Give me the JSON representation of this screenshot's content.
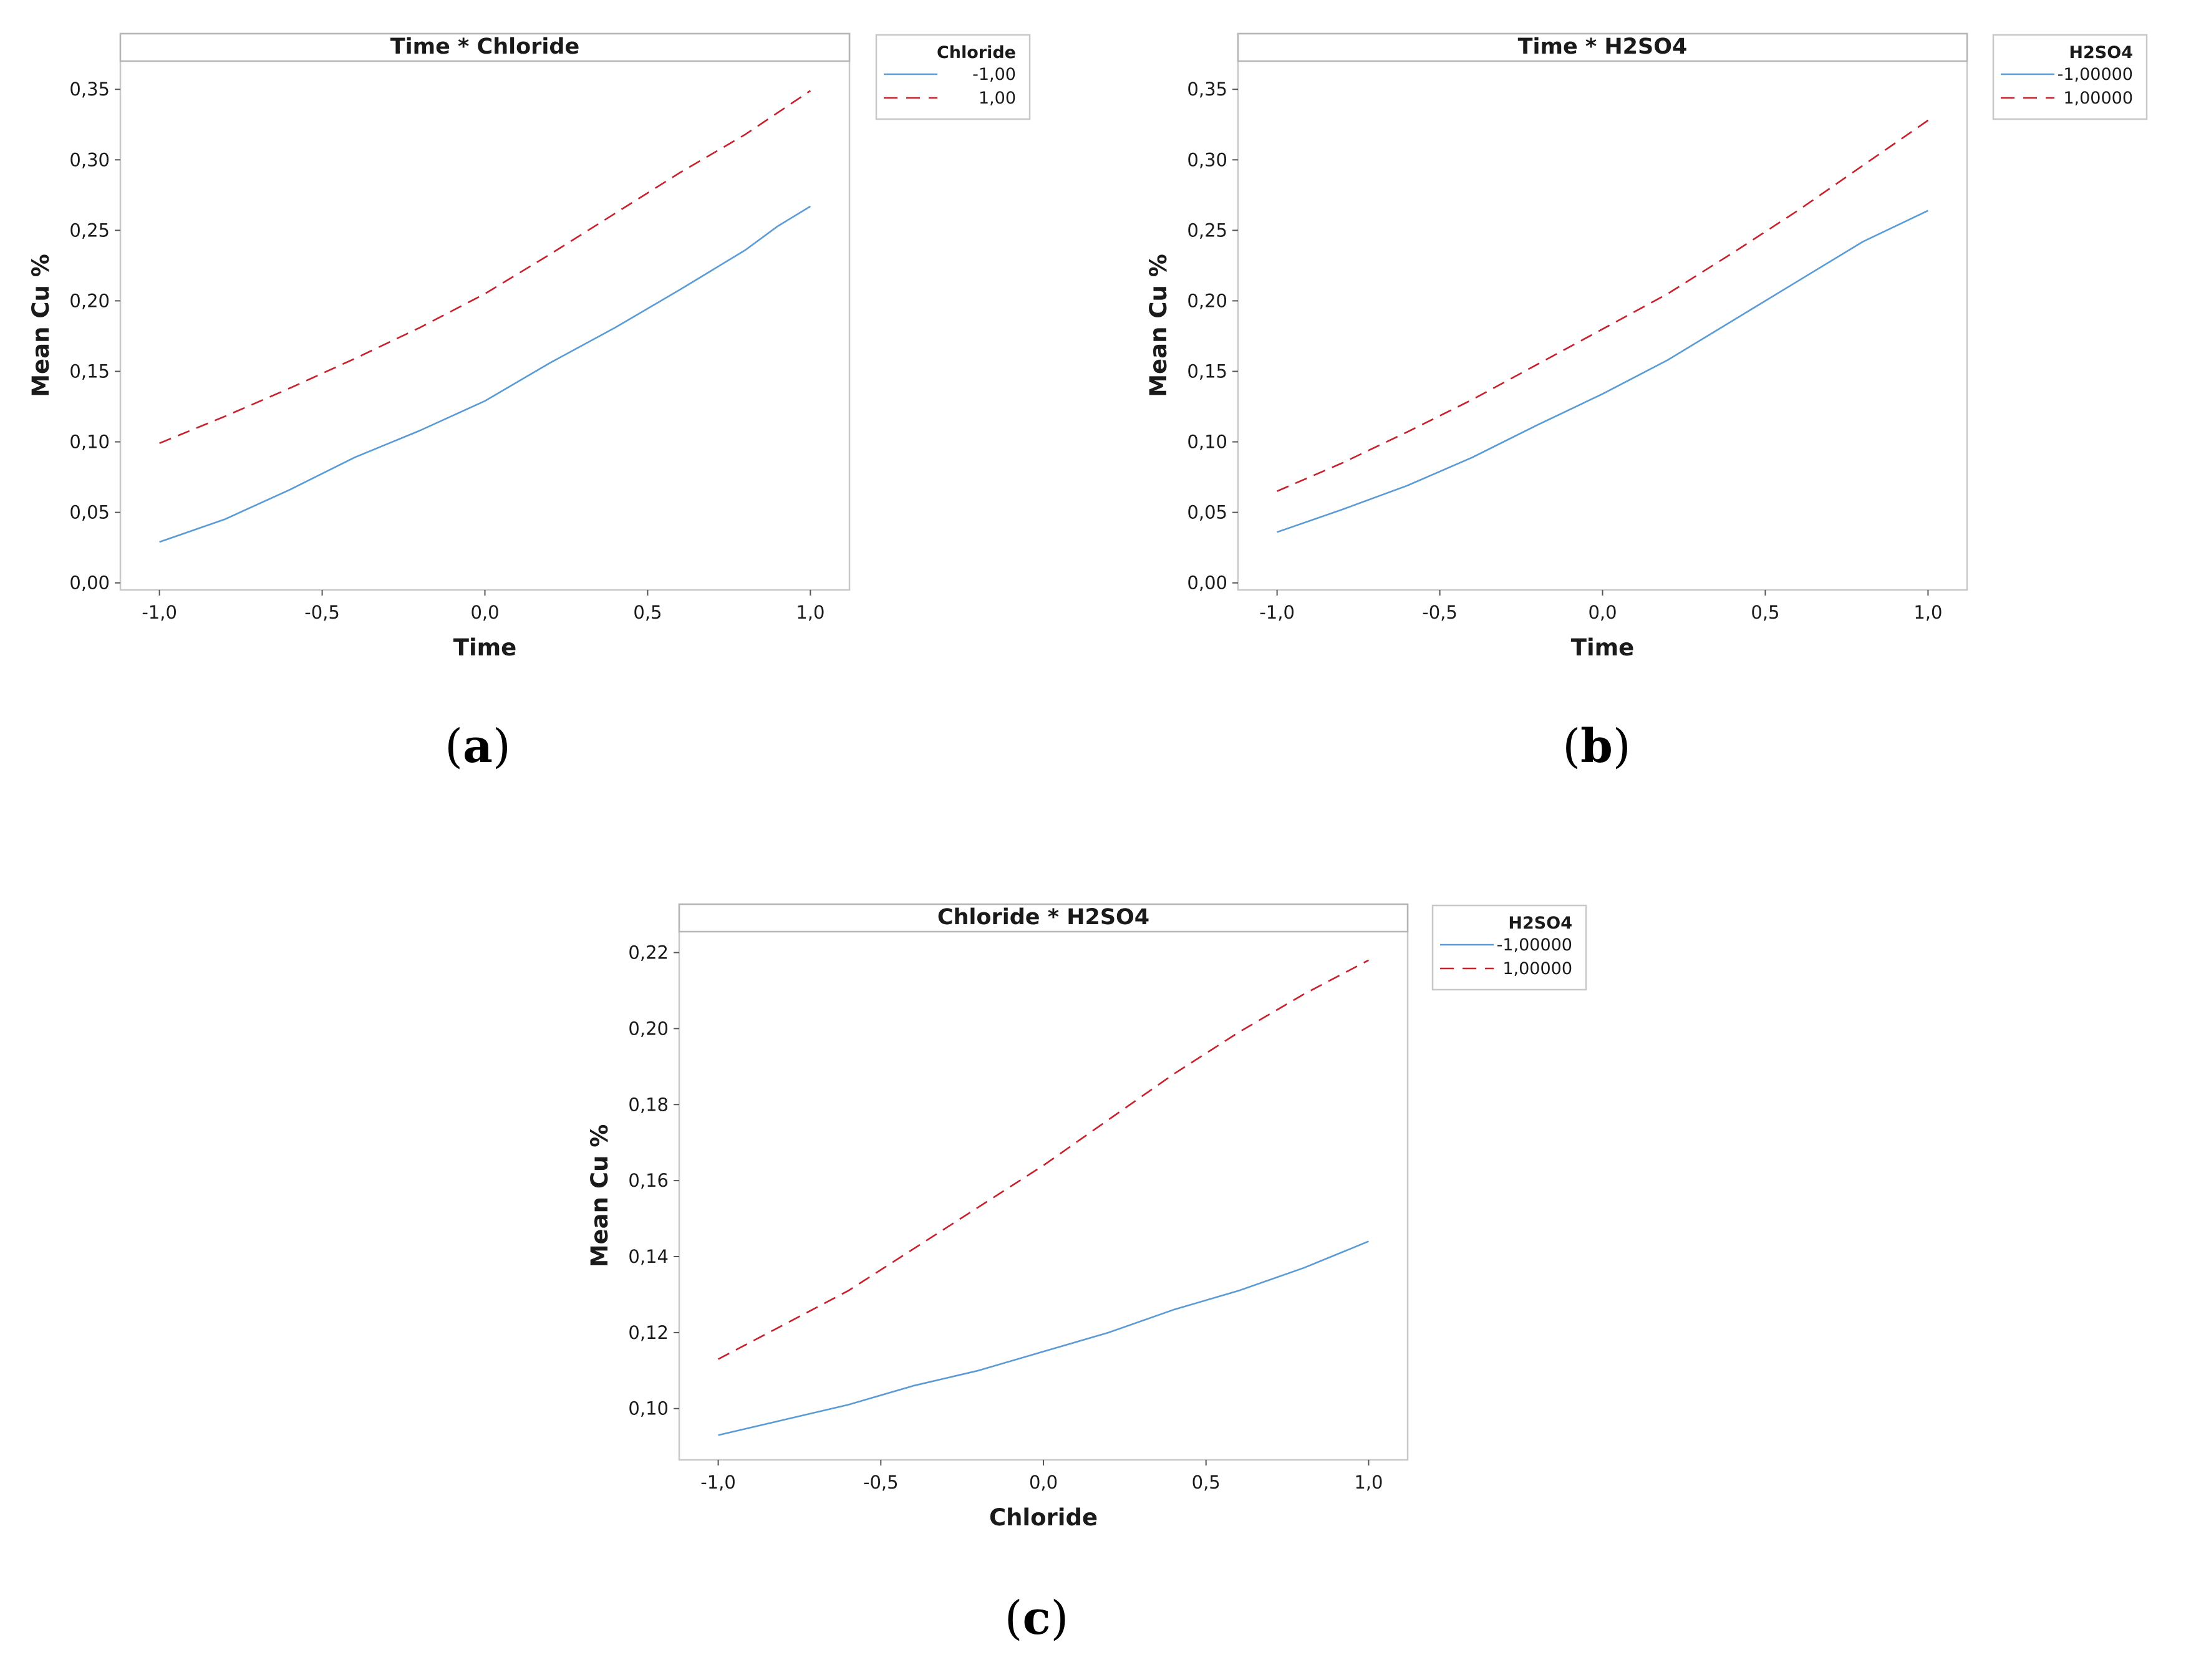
{
  "colors": {
    "series_low": "#5b9bd5",
    "series_high": "#c8202c"
  },
  "chart_data": [
    {
      "type": "line",
      "title": "Time * Chloride",
      "xlabel": "Time",
      "ylabel": "Mean Cu %",
      "xlim": [
        -1.12,
        1.12
      ],
      "ylim": [
        -0.005,
        0.37
      ],
      "xticks": [
        "-1,0",
        "-0,5",
        "0,0",
        "0,5",
        "1,0"
      ],
      "yticks": [
        "0,00",
        "0,05",
        "0,10",
        "0,15",
        "0,20",
        "0,25",
        "0,30",
        "0,35"
      ],
      "caption": {
        "open": "(",
        "letter": "a",
        "close": ")"
      },
      "legend": {
        "title": "Chloride",
        "position": "right",
        "entries": [
          "-1,00",
          "1,00"
        ]
      },
      "series": [
        {
          "name": "-1,00",
          "style": "solid",
          "x": [
            -1.0,
            -0.8,
            -0.6,
            -0.4,
            -0.2,
            0.0,
            0.2,
            0.4,
            0.6,
            0.8,
            0.9,
            1.0
          ],
          "y": [
            0.029,
            0.045,
            0.066,
            0.089,
            0.108,
            0.129,
            0.156,
            0.181,
            0.208,
            0.236,
            0.253,
            0.267
          ]
        },
        {
          "name": "1,00",
          "style": "dashed",
          "x": [
            -1.0,
            -0.8,
            -0.6,
            -0.4,
            -0.2,
            0.0,
            0.2,
            0.4,
            0.6,
            0.8,
            1.0
          ],
          "y": [
            0.099,
            0.118,
            0.138,
            0.159,
            0.181,
            0.205,
            0.233,
            0.262,
            0.291,
            0.318,
            0.349
          ]
        }
      ]
    },
    {
      "type": "line",
      "title": "Time * H2SO4",
      "xlabel": "Time",
      "ylabel": "Mean Cu %",
      "xlim": [
        -1.12,
        1.12
      ],
      "ylim": [
        -0.005,
        0.37
      ],
      "xticks": [
        "-1,0",
        "-0,5",
        "0,0",
        "0,5",
        "1,0"
      ],
      "yticks": [
        "0,00",
        "0,05",
        "0,10",
        "0,15",
        "0,20",
        "0,25",
        "0,30",
        "0,35"
      ],
      "caption": {
        "open": "(",
        "letter": "b",
        "close": ")"
      },
      "legend": {
        "title": "H2SO4",
        "position": "right",
        "entries": [
          "-1,00000",
          "1,00000"
        ]
      },
      "series": [
        {
          "name": "-1,00000",
          "style": "solid",
          "x": [
            -1.0,
            -0.8,
            -0.6,
            -0.4,
            -0.2,
            0.0,
            0.2,
            0.4,
            0.6,
            0.8,
            1.0
          ],
          "y": [
            0.036,
            0.052,
            0.069,
            0.089,
            0.112,
            0.134,
            0.158,
            0.186,
            0.214,
            0.242,
            0.264
          ]
        },
        {
          "name": "1,00000",
          "style": "dashed",
          "x": [
            -1.0,
            -0.8,
            -0.6,
            -0.4,
            -0.2,
            0.0,
            0.2,
            0.4,
            0.6,
            0.8,
            1.0
          ],
          "y": [
            0.065,
            0.085,
            0.107,
            0.13,
            0.155,
            0.18,
            0.205,
            0.234,
            0.264,
            0.296,
            0.328
          ]
        }
      ]
    },
    {
      "type": "line",
      "title": "Chloride * H2SO4",
      "xlabel": "Chloride",
      "ylabel": "Mean Cu %",
      "xlim": [
        -1.12,
        1.12
      ],
      "ylim": [
        0.0865,
        0.2255
      ],
      "xticks": [
        "-1,0",
        "-0,5",
        "0,0",
        "0,5",
        "1,0"
      ],
      "yticks": [
        "0,10",
        "0,12",
        "0,14",
        "0,16",
        "0,18",
        "0,20",
        "0,22"
      ],
      "caption": {
        "open": "(",
        "letter": "c",
        "close": ")"
      },
      "legend": {
        "title": "H2SO4",
        "position": "right",
        "entries": [
          "-1,00000",
          "1,00000"
        ]
      },
      "series": [
        {
          "name": "-1,00000",
          "style": "solid",
          "x": [
            -1.0,
            -0.8,
            -0.6,
            -0.4,
            -0.2,
            0.0,
            0.2,
            0.4,
            0.6,
            0.8,
            1.0
          ],
          "y": [
            0.093,
            0.097,
            0.101,
            0.106,
            0.11,
            0.115,
            0.12,
            0.126,
            0.131,
            0.137,
            0.144
          ]
        },
        {
          "name": "1,00000",
          "style": "dashed",
          "x": [
            -1.0,
            -0.8,
            -0.6,
            -0.4,
            -0.2,
            0.0,
            0.2,
            0.4,
            0.6,
            0.8,
            1.0
          ],
          "y": [
            0.113,
            0.122,
            0.131,
            0.142,
            0.153,
            0.164,
            0.176,
            0.188,
            0.199,
            0.209,
            0.218
          ]
        }
      ]
    }
  ]
}
